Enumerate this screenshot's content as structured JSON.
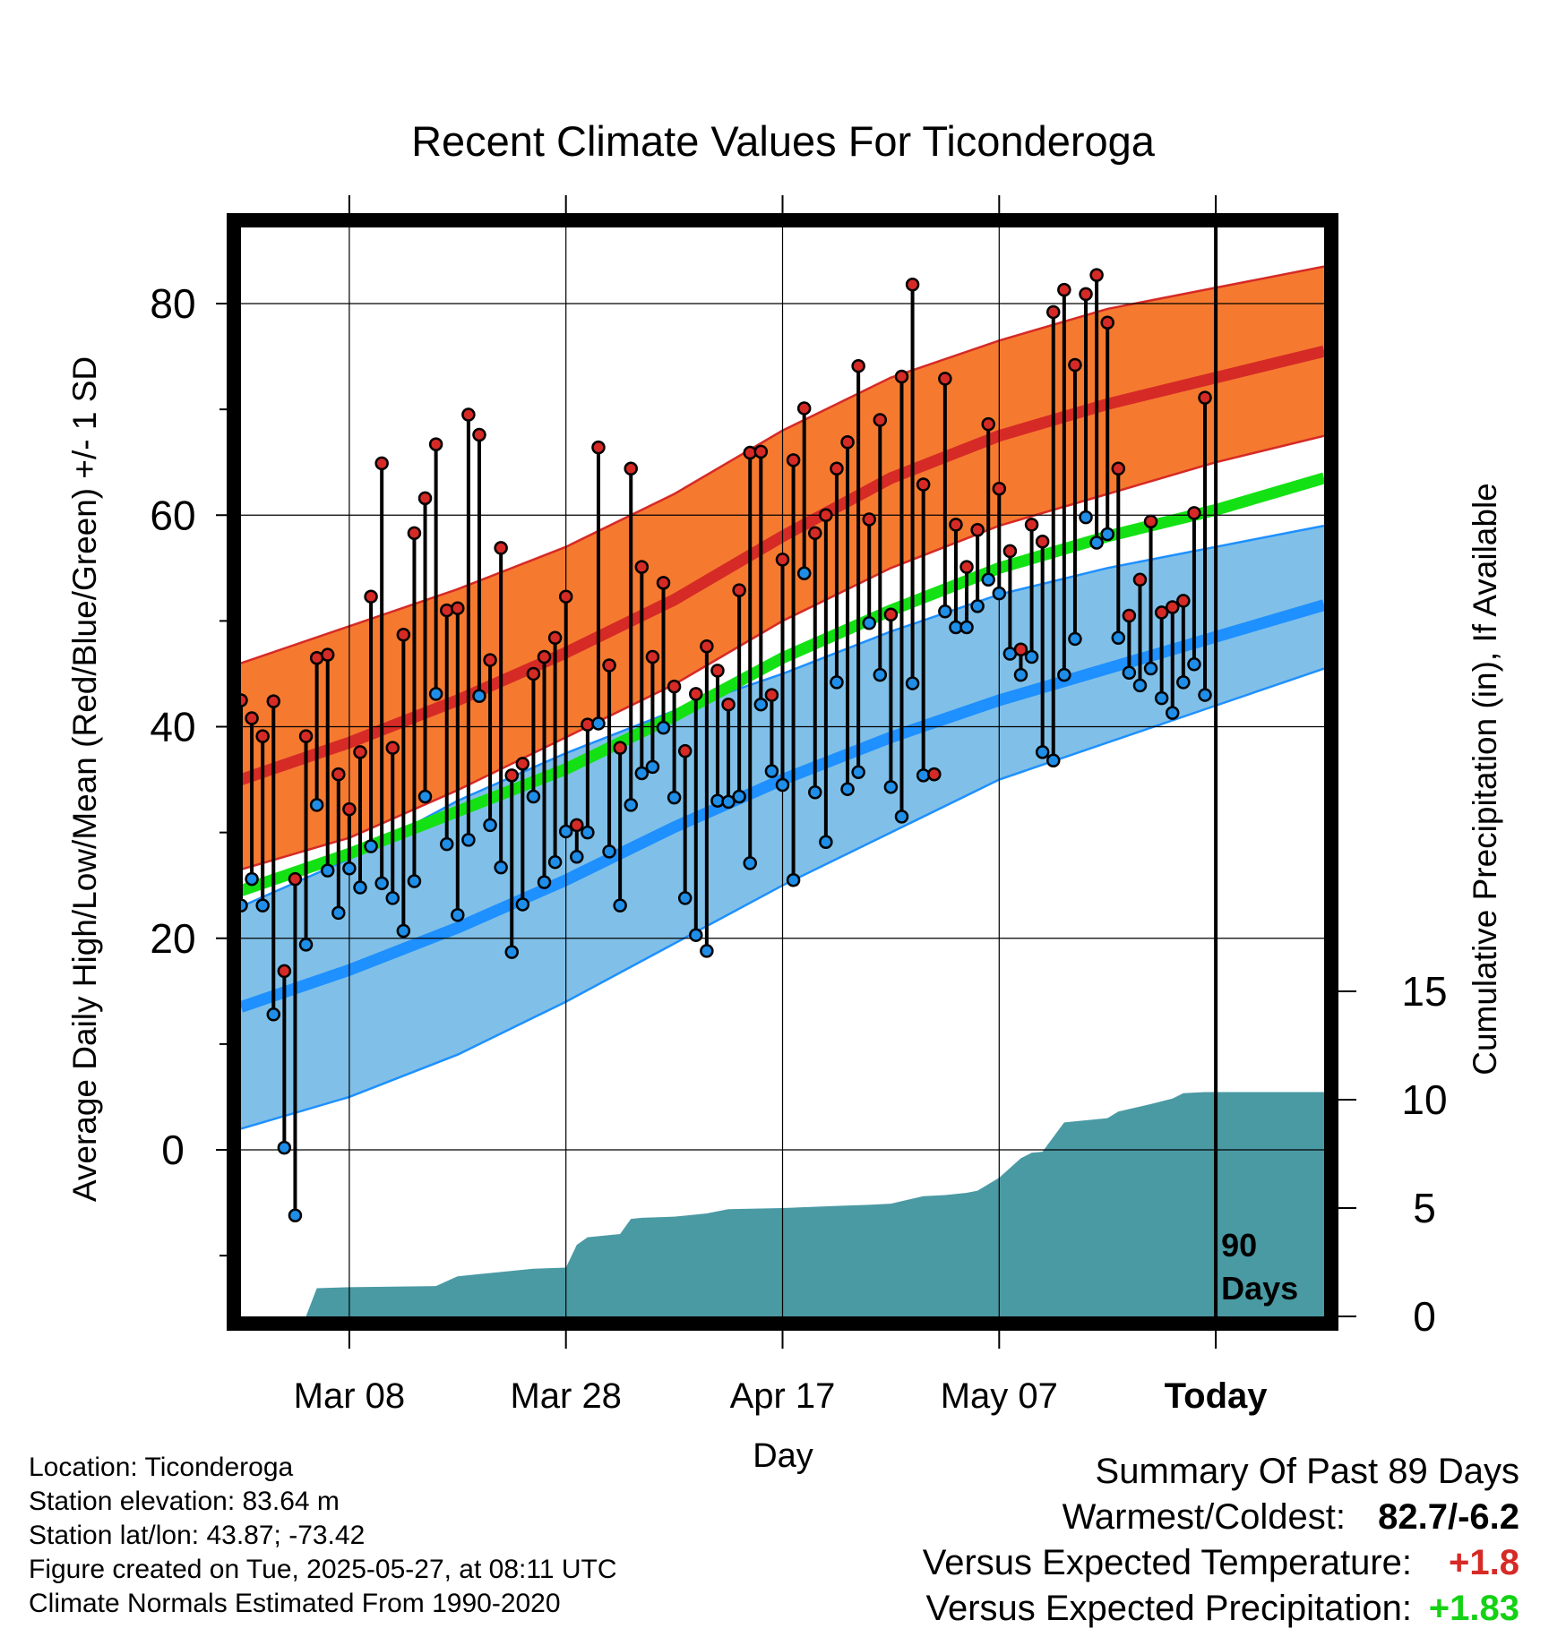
{
  "chart_data": {
    "type": "line",
    "title": "Recent Climate Values For Ticonderoga",
    "xlabel": "Day",
    "ylabel": "Average Daily High/Low/Mean (Red/Blue/Green) +/- 1 SD",
    "y2label": "Cumulative Precipitation (in), If Available",
    "xticks": [
      "Mar 08",
      "Mar 28",
      "Apr 17",
      "May 07",
      "Today"
    ],
    "yticks": [
      "0",
      "20",
      "40",
      "60",
      "80"
    ],
    "y2ticks": [
      "0",
      "5",
      "10",
      "15"
    ],
    "ylim": [
      -15,
      88
    ],
    "y2lim": [
      0,
      30
    ],
    "xlim": [
      0,
      100
    ],
    "x_start": "2025-02-26",
    "today_marker": {
      "x": 90,
      "label_line1": "90",
      "label_line2": "Days"
    },
    "grid": true,
    "colors": {
      "high_band": "#f57a30",
      "high_line": "#d62a26",
      "low_band": "#80c0e8",
      "low_line": "#1e90ff",
      "mean_line": "#14e114",
      "precip": "#4a9aa4",
      "high_dot": "#d62a26",
      "low_dot": "#1e8ee8"
    },
    "normals": {
      "x": [
        0,
        10,
        20,
        30,
        40,
        50,
        60,
        70,
        80,
        90,
        100
      ],
      "high_mean": [
        35,
        38.5,
        42.5,
        47,
        52,
        58,
        63.5,
        67.5,
        70.5,
        73,
        75.5
      ],
      "high_upper": [
        46,
        49.5,
        53,
        57,
        62,
        68,
        73,
        76.5,
        79.5,
        81.5,
        83.5
      ],
      "high_lower": [
        26.5,
        29.5,
        34,
        39,
        44,
        50,
        55,
        59,
        62,
        65,
        67.5
      ],
      "low_mean": [
        13.5,
        17,
        21,
        25.5,
        30.5,
        35,
        39,
        42.5,
        45.5,
        48.5,
        51.5
      ],
      "low_upper": [
        23,
        27.5,
        33,
        37.5,
        41.5,
        45,
        49,
        52.5,
        55,
        57,
        59
      ],
      "low_lower": [
        2,
        5,
        9,
        14,
        19.5,
        25,
        30,
        35,
        38.5,
        42,
        45.5
      ],
      "mean_mean": [
        24.5,
        28,
        32,
        36,
        41,
        46.5,
        51,
        55,
        58,
        60.5,
        63.5
      ]
    },
    "daily": {
      "x": [
        0,
        1,
        2,
        3,
        4,
        5,
        6,
        7,
        8,
        9,
        10,
        11,
        12,
        13,
        14,
        15,
        16,
        17,
        18,
        19,
        20,
        21,
        22,
        23,
        24,
        25,
        26,
        27,
        28,
        29,
        30,
        31,
        32,
        33,
        34,
        35,
        36,
        37,
        38,
        39,
        40,
        41,
        42,
        43,
        44,
        45,
        46,
        47,
        48,
        49,
        50,
        51,
        52,
        53,
        54,
        55,
        56,
        57,
        58,
        59,
        60,
        61,
        62,
        63,
        64,
        65,
        66,
        67,
        68,
        69,
        70,
        71,
        72,
        73,
        74,
        75,
        76,
        77,
        78,
        79,
        80,
        81,
        82,
        83,
        84,
        85,
        86,
        87,
        88,
        89
      ],
      "high": [
        42.5,
        40.8,
        39.1,
        42.4,
        16.9,
        25.6,
        39.1,
        46.5,
        46.8,
        35.5,
        32.2,
        37.6,
        52.3,
        64.9,
        38,
        48.7,
        58.3,
        61.6,
        66.7,
        51,
        51.2,
        69.5,
        67.6,
        46.3,
        56.9,
        35.4,
        36.5,
        45,
        46.6,
        48.4,
        52.3,
        30.7,
        40.2,
        66.4,
        45.8,
        38,
        64.4,
        55.1,
        46.6,
        53.6,
        43.8,
        37.7,
        43.1,
        47.6,
        45.3,
        42.1,
        52.9,
        65.9,
        66,
        43,
        55.8,
        65.2,
        70.1,
        58.3,
        60,
        64.4,
        66.9,
        74.1,
        59.6,
        69,
        50.6,
        73.1,
        81.8,
        62.9,
        35.5,
        72.9,
        59.1,
        55.1,
        58.6,
        68.6,
        62.5,
        56.6,
        47.3,
        59.1,
        57.5,
        79.2,
        81.3,
        74.2,
        80.9,
        82.7,
        78.2,
        64.4,
        50.5,
        53.9,
        59.4,
        50.8,
        51.3,
        51.9,
        60.2,
        71.1
      ],
      "low": [
        23.1,
        25.6,
        23.1,
        12.8,
        0.2,
        -6.2,
        19.4,
        32.6,
        26.4,
        22.4,
        26.6,
        24.8,
        28.7,
        25.2,
        23.8,
        20.7,
        25.4,
        33.4,
        43.1,
        28.9,
        22.2,
        29.3,
        42.9,
        30.7,
        26.7,
        18.7,
        23.2,
        33.4,
        25.3,
        27.2,
        30.1,
        27.7,
        30,
        40.3,
        28.2,
        23.1,
        32.6,
        35.6,
        36.2,
        39.9,
        33.3,
        23.8,
        20.3,
        18.8,
        33,
        32.9,
        33.4,
        27.1,
        42.1,
        35.8,
        34.5,
        25.5,
        54.5,
        33.8,
        29.1,
        44.2,
        34.1,
        35.7,
        49.8,
        44.9,
        34.3,
        31.5,
        44.1,
        35.4,
        35.5,
        50.9,
        49.4,
        49.4,
        51.4,
        53.9,
        52.6,
        46.9,
        44.9,
        46.6,
        37.6,
        36.8,
        44.9,
        48.3,
        59.8,
        57.4,
        58.2,
        48.4,
        45.1,
        43.9,
        45.5,
        42.7,
        41.3,
        44.2,
        45.9,
        43
      ]
    },
    "precip": {
      "x": [
        0,
        6,
        7,
        10,
        18,
        20,
        22,
        24,
        27,
        30,
        31,
        32,
        35,
        36,
        37,
        40,
        43,
        45,
        50,
        55,
        58,
        60,
        63,
        65,
        67,
        68,
        70,
        72,
        73,
        74,
        76,
        80,
        81,
        84,
        86,
        87,
        89,
        100
      ],
      "values": [
        0,
        0,
        1.3,
        1.35,
        1.4,
        1.85,
        1.95,
        2.05,
        2.2,
        2.25,
        3.3,
        3.65,
        3.8,
        4.5,
        4.55,
        4.6,
        4.75,
        4.95,
        5,
        5.1,
        5.15,
        5.2,
        5.55,
        5.6,
        5.7,
        5.8,
        6.4,
        7.3,
        7.55,
        7.6,
        8.95,
        9.15,
        9.45,
        9.8,
        10.05,
        10.3,
        10.35,
        10.35
      ]
    }
  },
  "info": {
    "location": "Location: Ticonderoga",
    "elevation": "Station elevation: 83.64 m",
    "latlon": "Station lat/lon: 43.87; -73.42",
    "created": "Figure created on Tue, 2025-05-27, at 08:11 UTC",
    "normals": "Climate Normals Estimated From 1990-2020"
  },
  "summary": {
    "heading": "Summary Of Past 89 Days",
    "warm_label": "Warmest/Coldest:",
    "warm_value": "82.7/-6.2",
    "temp_label": "Versus Expected Temperature:",
    "temp_value": "+1.8",
    "temp_color": "#d62a26",
    "precip_label": "Versus Expected Precipitation:",
    "precip_value": "+1.83",
    "precip_color": "#14d214"
  }
}
